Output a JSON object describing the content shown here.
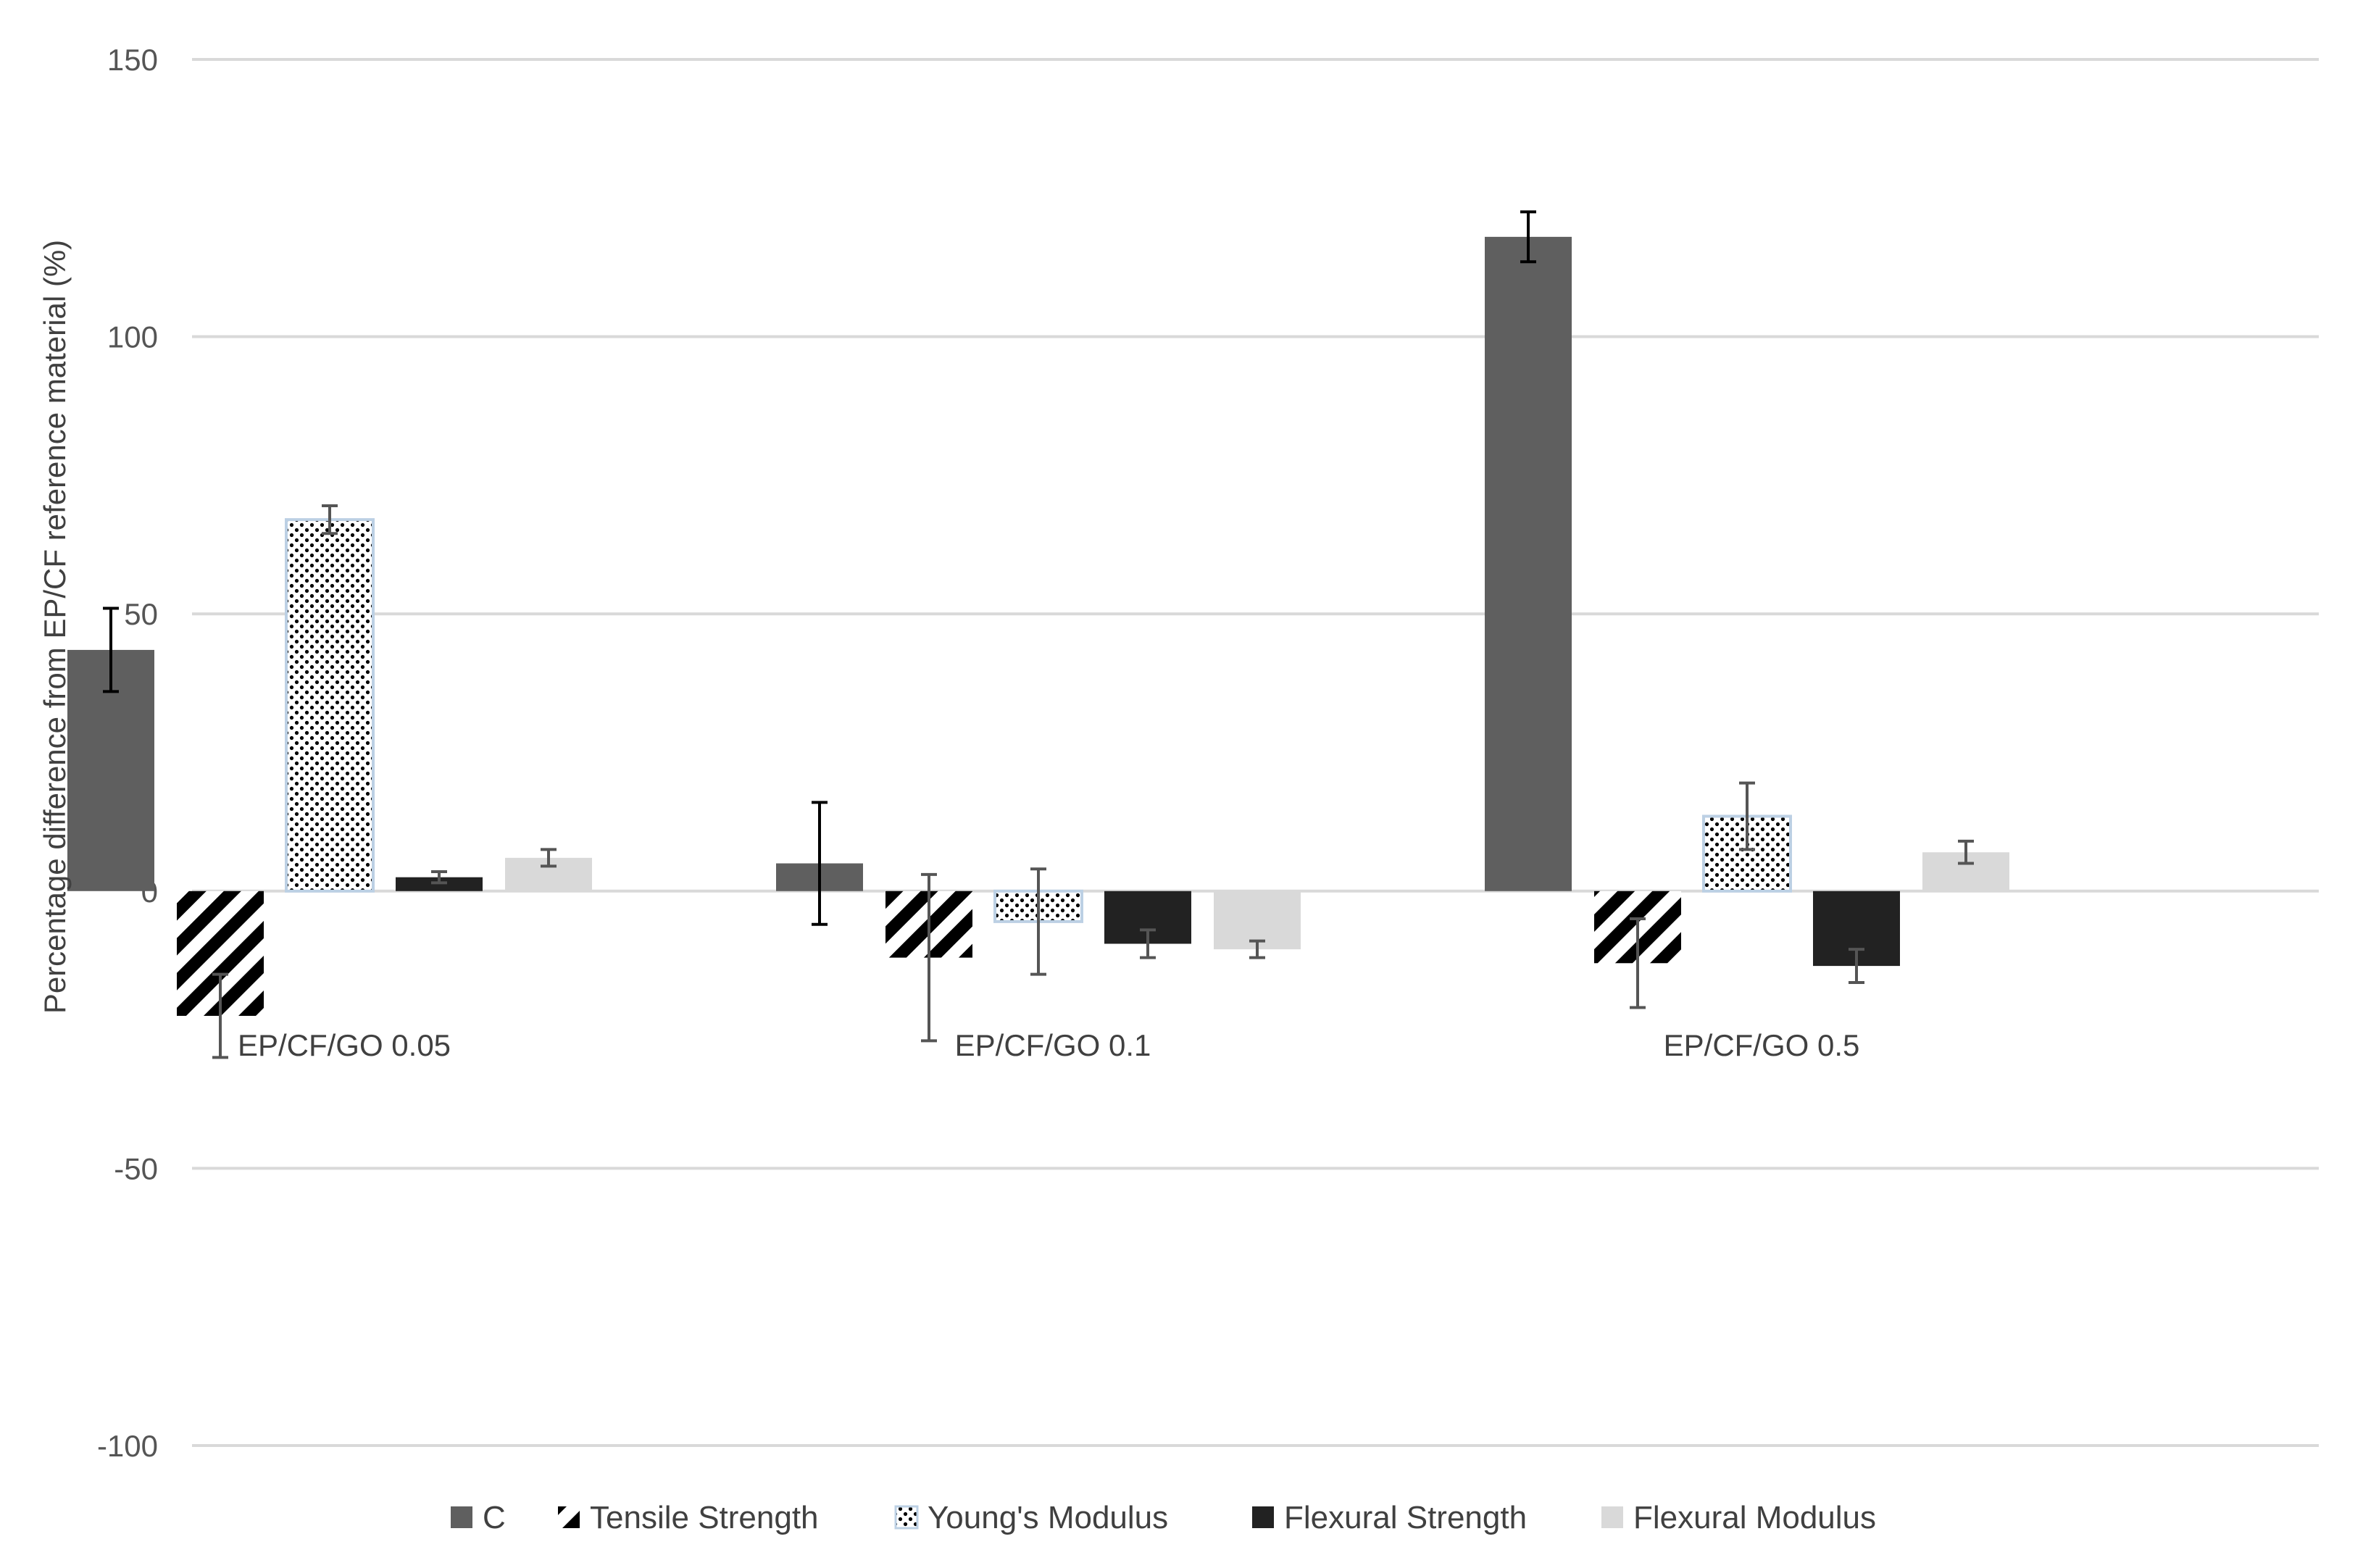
{
  "chart_data": {
    "type": "bar",
    "ylabel": "Percentage difference from EP/CF reference material (%)",
    "ylim": [
      -100,
      150
    ],
    "yticks": [
      150,
      100,
      50,
      0,
      -50,
      -100
    ],
    "ytick_labels": [
      "150",
      "100",
      "50",
      "0",
      "-50",
      "-100"
    ],
    "categories": [
      "EP/CF/GO 0.05",
      "EP/CF/GO 0.1",
      "EP/CF/GO 0.5"
    ],
    "grid": true,
    "legend_position": "bottom",
    "series": [
      {
        "name": "C",
        "values": [
          43.5,
          5,
          118
        ],
        "errors": [
          7.5,
          11,
          4.5
        ],
        "fill": "#5f5f5f",
        "pattern": "solid",
        "error_color": "#000000"
      },
      {
        "name": "Tensile Strength",
        "values": [
          -22.5,
          -12,
          -13
        ],
        "errors": [
          7.5,
          15,
          8
        ],
        "fill": "#000000",
        "pattern": "diagonal",
        "error_color": "#555555"
      },
      {
        "name": "Young's Modulus",
        "values": [
          67,
          -5.5,
          13.5
        ],
        "errors": [
          2.5,
          9.5,
          6
        ],
        "fill": "#ffffff",
        "pattern": "dots",
        "error_color": "#555555"
      },
      {
        "name": "Flexural Strength",
        "values": [
          2.5,
          -9.5,
          -13.5
        ],
        "errors": [
          1,
          2.5,
          3
        ],
        "fill": "#222222",
        "pattern": "solid",
        "error_color": "#555555"
      },
      {
        "name": "Flexural Modulus",
        "values": [
          6,
          -10.5,
          7
        ],
        "errors": [
          1.5,
          1.5,
          2
        ],
        "fill": "#d9d9d9",
        "pattern": "solid",
        "error_color": "#555555"
      }
    ]
  }
}
